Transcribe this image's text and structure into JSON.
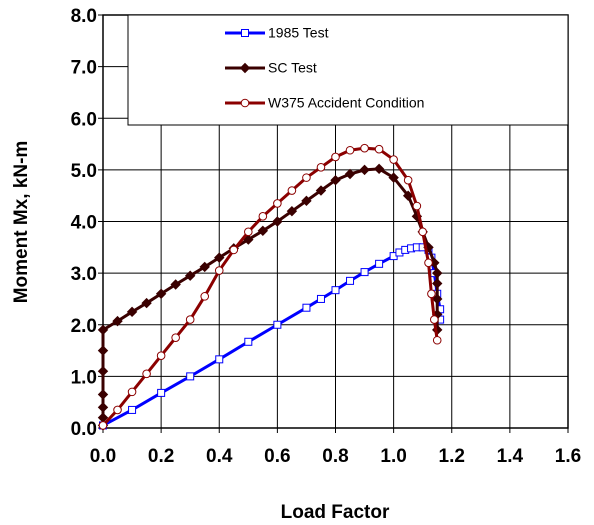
{
  "chart_data": {
    "type": "line",
    "xlabel": "Load Factor",
    "ylabel": "Moment Mx, kN-m",
    "xlim": [
      0,
      1.6
    ],
    "ylim": [
      0,
      8
    ],
    "xticks": [
      {
        "value": 0,
        "label": "0.0"
      },
      0.2,
      0.4,
      0.6,
      0.8,
      {
        "value": 1,
        "label": "1.0"
      },
      1.2,
      1.4,
      1.6
    ],
    "yticks": [
      {
        "value": 0,
        "label": "0.0"
      },
      {
        "value": 1,
        "label": "1.0"
      },
      {
        "value": 2,
        "label": "2.0"
      },
      {
        "value": 3,
        "label": "3.0"
      },
      {
        "value": 4,
        "label": "4.0"
      },
      {
        "value": 5,
        "label": "5.0"
      },
      {
        "value": 6,
        "label": "6.0"
      },
      {
        "value": 7,
        "label": "7.0"
      },
      {
        "value": 8,
        "label": "8.0"
      }
    ],
    "grid": true,
    "legend": "top",
    "series": [
      {
        "name": "1985 Test",
        "color": "#0000ff",
        "marker": "square",
        "x": [
          0,
          0.1,
          0.2,
          0.3,
          0.4,
          0.5,
          0.6,
          0.7,
          0.75,
          0.8,
          0.85,
          0.9,
          0.95,
          1.0,
          1.02,
          1.04,
          1.06,
          1.08,
          1.1,
          1.12,
          1.13,
          1.14,
          1.15,
          1.16,
          1.16
        ],
        "values": [
          0.05,
          0.35,
          0.68,
          1.0,
          1.33,
          1.67,
          2.0,
          2.33,
          2.5,
          2.67,
          2.85,
          3.02,
          3.18,
          3.33,
          3.4,
          3.45,
          3.48,
          3.5,
          3.5,
          3.45,
          3.3,
          3.0,
          2.6,
          2.3,
          2.1
        ]
      },
      {
        "name": "SC Test",
        "color": "#3a0000",
        "marker": "diamond",
        "x": [
          0,
          0,
          0,
          0,
          0,
          0,
          0,
          0.05,
          0.1,
          0.15,
          0.2,
          0.25,
          0.3,
          0.35,
          0.4,
          0.45,
          0.5,
          0.55,
          0.6,
          0.65,
          0.7,
          0.75,
          0.8,
          0.85,
          0.9,
          0.95,
          1.0,
          1.05,
          1.08,
          1.1,
          1.12,
          1.14,
          1.15,
          1.15,
          1.15,
          1.15,
          1.15
        ],
        "values": [
          0.05,
          0.2,
          0.4,
          0.65,
          1.1,
          1.5,
          1.9,
          2.07,
          2.25,
          2.42,
          2.6,
          2.78,
          2.95,
          3.12,
          3.3,
          3.48,
          3.65,
          3.82,
          4.0,
          4.2,
          4.4,
          4.6,
          4.8,
          4.92,
          5.0,
          5.02,
          4.85,
          4.5,
          4.1,
          3.8,
          3.5,
          3.2,
          3.0,
          2.8,
          2.5,
          2.2,
          1.9
        ]
      },
      {
        "name": "W375 Accident Condition",
        "color": "#8b0000",
        "marker": "circle",
        "x": [
          0,
          0.05,
          0.1,
          0.15,
          0.2,
          0.25,
          0.3,
          0.35,
          0.4,
          0.45,
          0.5,
          0.55,
          0.6,
          0.65,
          0.7,
          0.75,
          0.8,
          0.85,
          0.9,
          0.95,
          1.0,
          1.05,
          1.08,
          1.1,
          1.12,
          1.13,
          1.14,
          1.15
        ],
        "values": [
          0.05,
          0.35,
          0.7,
          1.05,
          1.4,
          1.75,
          2.1,
          2.55,
          3.05,
          3.45,
          3.8,
          4.1,
          4.35,
          4.6,
          4.85,
          5.05,
          5.25,
          5.38,
          5.42,
          5.4,
          5.2,
          4.8,
          4.3,
          3.8,
          3.2,
          2.6,
          2.1,
          1.7
        ]
      }
    ]
  }
}
